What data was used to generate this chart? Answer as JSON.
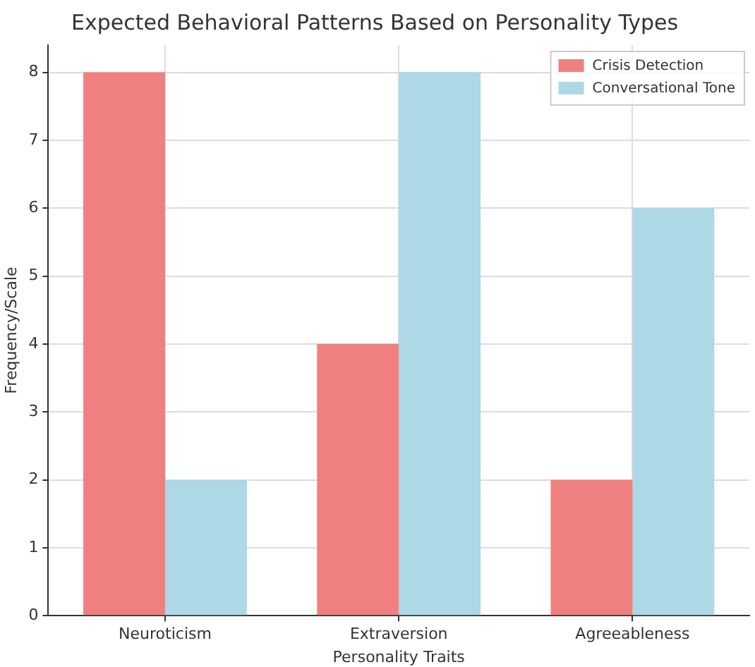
{
  "chart_data": {
    "type": "bar",
    "title": "Expected Behavioral Patterns Based on Personality Types",
    "xlabel": "Personality Traits",
    "ylabel": "Frequency/Scale",
    "categories": [
      "Neuroticism",
      "Extraversion",
      "Agreeableness"
    ],
    "series": [
      {
        "name": "Crisis Detection",
        "color": "#f08080",
        "values": [
          8,
          4,
          2
        ]
      },
      {
        "name": "Conversational Tone",
        "color": "#add8e6",
        "values": [
          2,
          8,
          6
        ]
      }
    ],
    "ylim": [
      0,
      8.4
    ],
    "yticks": [
      0,
      1,
      2,
      3,
      4,
      5,
      6,
      7,
      8
    ],
    "grid": true,
    "legend": "top right"
  }
}
